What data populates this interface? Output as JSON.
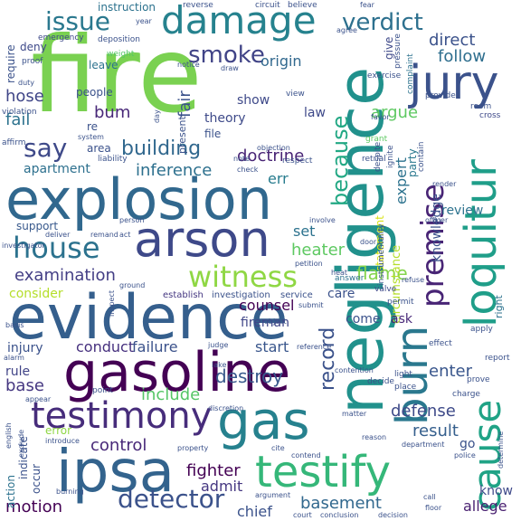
{
  "words": [
    {
      "text": "fire",
      "color": "#7ad151"
    },
    {
      "text": "explosion",
      "color": "#31688e"
    },
    {
      "text": "evidence",
      "color": "#355f8d"
    },
    {
      "text": "negligence",
      "color": "#21918c"
    },
    {
      "text": "gasoline",
      "color": "#440154"
    },
    {
      "text": "ipsa",
      "color": "#33638d"
    },
    {
      "text": "arson",
      "color": "#3e4989"
    },
    {
      "text": "damage",
      "color": "#26828e"
    },
    {
      "text": "testify",
      "color": "#35b779"
    },
    {
      "text": "jury",
      "color": "#3b528b"
    },
    {
      "text": "loquitur",
      "color": "#1f9e89"
    },
    {
      "text": "gas",
      "color": "#26818e"
    },
    {
      "text": "testimony",
      "color": "#472d7b"
    },
    {
      "text": "burn",
      "color": "#2a788e"
    },
    {
      "text": "premise",
      "color": "#482475"
    },
    {
      "text": "cause",
      "color": "#20a386"
    },
    {
      "text": "house",
      "color": "#2c728e"
    },
    {
      "text": "witness",
      "color": "#8fd744"
    },
    {
      "text": "verdict",
      "color": "#2d708e"
    },
    {
      "text": "issue",
      "color": "#2a788e"
    },
    {
      "text": "smoke",
      "color": "#414487"
    },
    {
      "text": "because",
      "color": "#22a884"
    },
    {
      "text": "detector",
      "color": "#3b528b"
    },
    {
      "text": "say",
      "color": "#3e4989"
    },
    {
      "text": "building",
      "color": "#31688e"
    },
    {
      "text": "record",
      "color": "#3b528b"
    },
    {
      "text": "examination",
      "color": "#433e85"
    },
    {
      "text": "destroy",
      "color": "#38598c"
    },
    {
      "text": "include",
      "color": "#56c667"
    },
    {
      "text": "heater",
      "color": "#5ec962"
    },
    {
      "text": "basement",
      "color": "#31688e"
    },
    {
      "text": "control",
      "color": "#482878"
    },
    {
      "text": "direct",
      "color": "#3b528b"
    },
    {
      "text": "follow",
      "color": "#2e6e8e"
    },
    {
      "text": "inference",
      "color": "#2d708e"
    },
    {
      "text": "doctrine",
      "color": "#482475"
    },
    {
      "text": "flame",
      "color": "#84d44b"
    },
    {
      "text": "fighter",
      "color": "#440154"
    },
    {
      "text": "defense",
      "color": "#3e4a89"
    },
    {
      "text": "result",
      "color": "#355f8d"
    },
    {
      "text": "hose",
      "color": "#404688"
    },
    {
      "text": "enter",
      "color": "#39568c"
    },
    {
      "text": "fail",
      "color": "#2c728e"
    },
    {
      "text": "base",
      "color": "#453781"
    },
    {
      "text": "motion",
      "color": "#440154"
    },
    {
      "text": "argue",
      "color": "#5ec962"
    },
    {
      "text": "expert",
      "color": "#2c728e"
    },
    {
      "text": "err",
      "color": "#287c8e"
    },
    {
      "text": "bum",
      "color": "#482878"
    },
    {
      "text": "fair",
      "color": "#3b528b"
    },
    {
      "text": "origin",
      "color": "#31688e"
    },
    {
      "text": "theory",
      "color": "#3e4a89"
    },
    {
      "text": "set",
      "color": "#2c728e"
    },
    {
      "text": "counsel",
      "color": "#440154"
    },
    {
      "text": "fireman",
      "color": "#404688"
    },
    {
      "text": "consider",
      "color": "#b5de2b"
    },
    {
      "text": "apartment",
      "color": "#2d708e"
    },
    {
      "text": "conduct",
      "color": "#46307e"
    },
    {
      "text": "failure",
      "color": "#3b528b"
    },
    {
      "text": "injury",
      "color": "#3b528b"
    },
    {
      "text": "rule",
      "color": "#414487"
    },
    {
      "text": "start",
      "color": "#39568c"
    },
    {
      "text": "chief",
      "color": "#3b528b"
    },
    {
      "text": "admit",
      "color": "#453781"
    },
    {
      "text": "allege",
      "color": "#481f70"
    },
    {
      "text": "know",
      "color": "#3e4989"
    },
    {
      "text": "circumstance",
      "color": "#b5de2b"
    },
    {
      "text": "review",
      "color": "#2c728e"
    },
    {
      "text": "knowledge",
      "color": "#3b528b"
    },
    {
      "text": "statement",
      "color": "#d8e219"
    },
    {
      "text": "party",
      "color": "#2a788e"
    },
    {
      "text": "people",
      "color": "#3b528b"
    },
    {
      "text": "leave",
      "color": "#2c728e"
    },
    {
      "text": "present",
      "color": "#3b528b"
    },
    {
      "text": "show",
      "color": "#3e4989"
    },
    {
      "text": "file",
      "color": "#3b528b"
    },
    {
      "text": "law",
      "color": "#3e4989"
    },
    {
      "text": "area",
      "color": "#3b528b"
    },
    {
      "text": "require",
      "color": "#3b528b"
    },
    {
      "text": "deny",
      "color": "#3e4989"
    },
    {
      "text": "instruction",
      "color": "#2c728e"
    },
    {
      "text": "give",
      "color": "#3e4989"
    },
    {
      "text": "support",
      "color": "#38598c"
    },
    {
      "text": "care",
      "color": "#3b528b"
    },
    {
      "text": "come",
      "color": "#3b528b"
    },
    {
      "text": "ask",
      "color": "#482878"
    },
    {
      "text": "right",
      "color": "#2c728e"
    },
    {
      "text": "error",
      "color": "#8fd744"
    },
    {
      "text": "occur",
      "color": "#3b528b"
    },
    {
      "text": "action",
      "color": "#2c728e"
    },
    {
      "text": "indicate",
      "color": "#3b528b"
    },
    {
      "text": "go",
      "color": "#3b528b"
    },
    {
      "text": "re",
      "color": "#3b528b"
    },
    {
      "text": "investigation",
      "color": "#3b528b"
    },
    {
      "text": "establish",
      "color": "#453781"
    },
    {
      "text": "service",
      "color": "#3b528b"
    },
    {
      "text": "valve",
      "color": "#3e4989"
    },
    {
      "text": "permit",
      "color": "#3b528b"
    },
    {
      "text": "answer",
      "color": "#2c728e"
    },
    {
      "text": "reverse",
      "color": "#3b528b"
    },
    {
      "text": "circuit",
      "color": "#3b528b"
    },
    {
      "text": "believe",
      "color": "#3b528b"
    },
    {
      "text": "year",
      "color": "#3b528b"
    },
    {
      "text": "emergency",
      "color": "#3e4989"
    },
    {
      "text": "deposition",
      "color": "#3b528b"
    },
    {
      "text": "proof",
      "color": "#3b528b"
    },
    {
      "text": "weight",
      "color": "#56c667"
    },
    {
      "text": "notice",
      "color": "#3b528b"
    },
    {
      "text": "draw",
      "color": "#3b528b"
    },
    {
      "text": "exercise",
      "color": "#3b528b"
    },
    {
      "text": "pressure",
      "color": "#3b528b"
    },
    {
      "text": "complaint",
      "color": "#2c728e"
    },
    {
      "text": "provide",
      "color": "#3b528b"
    },
    {
      "text": "room",
      "color": "#3b528b"
    },
    {
      "text": "favor",
      "color": "#3b528b"
    },
    {
      "text": "cross",
      "color": "#3e4989"
    },
    {
      "text": "view",
      "color": "#3b528b"
    },
    {
      "text": "grant",
      "color": "#5ec962"
    },
    {
      "text": "despite",
      "color": "#3b528b"
    },
    {
      "text": "respect",
      "color": "#3b528b"
    },
    {
      "text": "objection",
      "color": "#3b528b"
    },
    {
      "text": "note",
      "color": "#3b528b"
    },
    {
      "text": "liability",
      "color": "#3b528b"
    },
    {
      "text": "violation",
      "color": "#3b528b"
    },
    {
      "text": "system",
      "color": "#3b528b"
    },
    {
      "text": "affirm",
      "color": "#3b528b"
    },
    {
      "text": "duty",
      "color": "#3b528b"
    },
    {
      "text": "retrial",
      "color": "#3b528b"
    },
    {
      "text": "ignite",
      "color": "#3b528b"
    },
    {
      "text": "contain",
      "color": "#3b528b"
    },
    {
      "text": "render",
      "color": "#3b528b"
    },
    {
      "text": "instrumentality",
      "color": "#3b528b"
    },
    {
      "text": "officer",
      "color": "#3b528b"
    },
    {
      "text": "door",
      "color": "#3b528b"
    },
    {
      "text": "involve",
      "color": "#3b528b"
    },
    {
      "text": "person",
      "color": "#3b528b"
    },
    {
      "text": "deliver",
      "color": "#3b528b"
    },
    {
      "text": "remand",
      "color": "#3b528b"
    },
    {
      "text": "act",
      "color": "#3b528b"
    },
    {
      "text": "investigator",
      "color": "#3b528b"
    },
    {
      "text": "petition",
      "color": "#3b528b"
    },
    {
      "text": "heat",
      "color": "#3b528b"
    },
    {
      "text": "refuse",
      "color": "#3b528b"
    },
    {
      "text": "ground",
      "color": "#3b528b"
    },
    {
      "text": "inspect",
      "color": "#3b528b"
    },
    {
      "text": "object",
      "color": "#3b528b"
    },
    {
      "text": "submit",
      "color": "#3b528b"
    },
    {
      "text": "basis",
      "color": "#3b528b"
    },
    {
      "text": "alarm",
      "color": "#3b528b"
    },
    {
      "text": "judge",
      "color": "#3b528b"
    },
    {
      "text": "reference",
      "color": "#3b528b"
    },
    {
      "text": "lake",
      "color": "#3b528b"
    },
    {
      "text": "contention",
      "color": "#3b528b"
    },
    {
      "text": "decide",
      "color": "#3b528b"
    },
    {
      "text": "light",
      "color": "#3b528b"
    },
    {
      "text": "place",
      "color": "#3b528b"
    },
    {
      "text": "effect",
      "color": "#3b528b"
    },
    {
      "text": "apply",
      "color": "#3b528b"
    },
    {
      "text": "report",
      "color": "#3b528b"
    },
    {
      "text": "prove",
      "color": "#3b528b"
    },
    {
      "text": "charge",
      "color": "#3b528b"
    },
    {
      "text": "point",
      "color": "#3b528b"
    },
    {
      "text": "appear",
      "color": "#3b528b"
    },
    {
      "text": "english",
      "color": "#3b528b"
    },
    {
      "text": "discretion",
      "color": "#3b528b"
    },
    {
      "text": "matter",
      "color": "#3b528b"
    },
    {
      "text": "introduce",
      "color": "#3b528b"
    },
    {
      "text": "exclude",
      "color": "#3b528b"
    },
    {
      "text": "property",
      "color": "#3b528b"
    },
    {
      "text": "cite",
      "color": "#3b528b"
    },
    {
      "text": "reason",
      "color": "#3b528b"
    },
    {
      "text": "department",
      "color": "#3b528b"
    },
    {
      "text": "police",
      "color": "#3b528b"
    },
    {
      "text": "determine",
      "color": "#3b528b"
    },
    {
      "text": "contend",
      "color": "#3b528b"
    },
    {
      "text": "burning",
      "color": "#3b528b"
    },
    {
      "text": "argument",
      "color": "#3b528b"
    },
    {
      "text": "court",
      "color": "#3b528b"
    },
    {
      "text": "conclusion",
      "color": "#3b528b"
    },
    {
      "text": "decision",
      "color": "#3b528b"
    },
    {
      "text": "call",
      "color": "#3b528b"
    },
    {
      "text": "floor",
      "color": "#3b528b"
    },
    {
      "text": "fear",
      "color": "#3b528b"
    },
    {
      "text": "agree",
      "color": "#3b528b"
    },
    {
      "text": "day",
      "color": "#3b528b"
    },
    {
      "text": "check",
      "color": "#3b528b"
    }
  ]
}
